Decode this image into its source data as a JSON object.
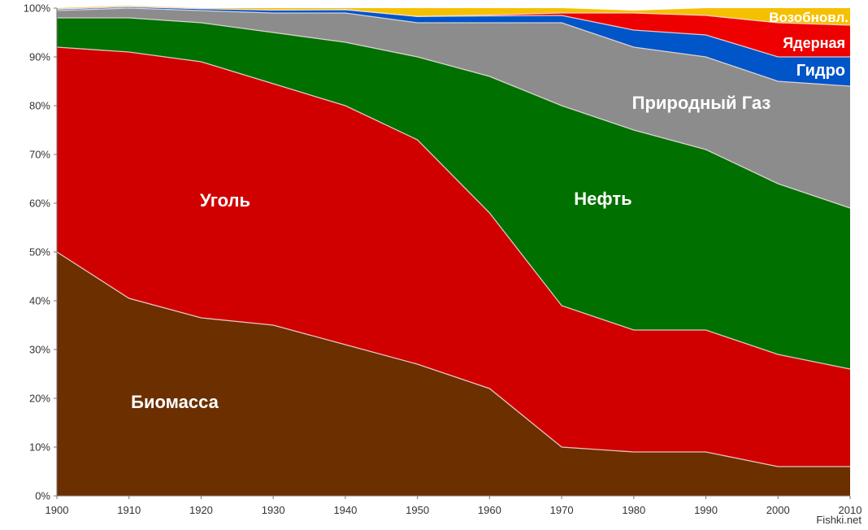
{
  "chart_data": {
    "type": "area",
    "stacked": true,
    "normalized_percent": true,
    "x": [
      1900,
      1910,
      1920,
      1930,
      1940,
      1950,
      1960,
      1970,
      1980,
      1990,
      2000,
      2010
    ],
    "ylim": [
      0,
      100
    ],
    "y_ticks": [
      "0%",
      "10%",
      "20%",
      "30%",
      "40%",
      "50%",
      "60%",
      "70%",
      "80%",
      "90%",
      "100%"
    ],
    "x_ticks": [
      "1900",
      "1910",
      "1920",
      "1930",
      "1940",
      "1950",
      "1960",
      "1970",
      "1980",
      "1990",
      "2000",
      "2010"
    ],
    "grid": false,
    "legend": "none",
    "series": [
      {
        "name": "Биомасса",
        "color": "#6b2f00",
        "values": [
          50,
          40.5,
          36.5,
          35,
          31,
          27,
          22,
          10,
          9,
          9,
          6,
          6
        ]
      },
      {
        "name": "Уголь",
        "color": "#d00000",
        "values": [
          42,
          50.5,
          52.5,
          49.5,
          49,
          46,
          36,
          29,
          25,
          25,
          23,
          20
        ]
      },
      {
        "name": "Нефть",
        "color": "#007000",
        "values": [
          6,
          7,
          8,
          10.5,
          13,
          17,
          28,
          41,
          41,
          37,
          35,
          33
        ]
      },
      {
        "name": "Природный Газ",
        "color": "#8c8c8c",
        "values": [
          1.5,
          2,
          2.5,
          4,
          6,
          7,
          11,
          17,
          17,
          19,
          21,
          25
        ]
      },
      {
        "name": "Гидро",
        "color": "#0055c8",
        "values": [
          0.3,
          0.3,
          0.4,
          0.6,
          0.7,
          1.3,
          1.4,
          1.5,
          3.5,
          4.5,
          5,
          6
        ]
      },
      {
        "name": "Ядерная",
        "color": "#ee0000",
        "values": [
          0,
          0,
          0,
          0,
          0,
          0,
          0.2,
          0.5,
          3.5,
          4,
          7,
          6.5
        ]
      },
      {
        "name": "Возобновл.",
        "color": "#f5c000",
        "values": [
          0.2,
          0.2,
          0.1,
          0.4,
          0.3,
          1.7,
          1.4,
          1,
          0.5,
          1.5,
          3,
          3.5
        ]
      }
    ],
    "annotations": [
      "Биомасса",
      "Уголь",
      "Нефть",
      "Природный Газ",
      "Гидро",
      "Ядерная",
      "Возобновл."
    ]
  },
  "watermark": "Fishki.net"
}
